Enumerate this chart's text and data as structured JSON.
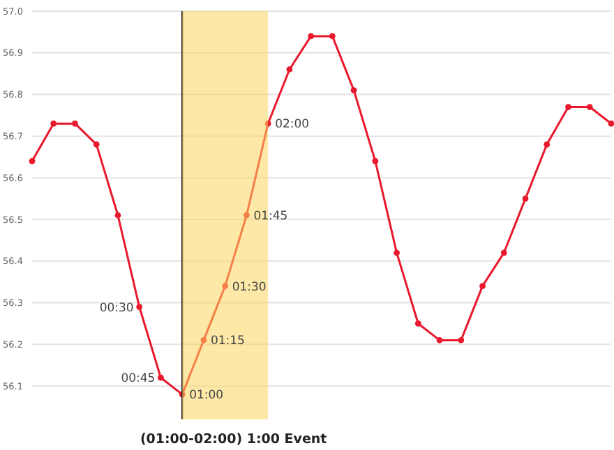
{
  "chart_data": {
    "type": "line",
    "categories": [
      null,
      null,
      null,
      null,
      null,
      null,
      null,
      null,
      null,
      null,
      null,
      null,
      null,
      null,
      null,
      null,
      null,
      null,
      null,
      null,
      null,
      null,
      null,
      null,
      null,
      null,
      null,
      null
    ],
    "series": [
      {
        "color": "#e8192c",
        "values": [
          56.64,
          56.73,
          56.73,
          56.68,
          56.51,
          56.29,
          56.12,
          56.08,
          56.21,
          56.34,
          56.51,
          56.73,
          56.86,
          56.94,
          56.94,
          56.81,
          56.64,
          56.42,
          56.25,
          56.21,
          56.21,
          56.34,
          56.42,
          56.55,
          56.68,
          56.77,
          56.77,
          56.73
        ]
      }
    ],
    "ylim": [
      56.02,
      57.0
    ],
    "yticks": [
      {
        "value": 56.1,
        "label": "56.1"
      },
      {
        "value": 56.2,
        "label": "56.2"
      },
      {
        "value": 56.3,
        "label": "56.3"
      },
      {
        "value": 56.4,
        "label": "56.4"
      },
      {
        "value": 56.5,
        "label": "56.5"
      },
      {
        "value": 56.6,
        "label": "56.6"
      },
      {
        "value": 56.7,
        "label": "56.7"
      },
      {
        "value": 56.8,
        "label": "56.8"
      },
      {
        "value": 56.9,
        "label": "56.9"
      },
      {
        "value": 57.0,
        "label": "57.0"
      }
    ],
    "grid": "y",
    "marker": "circle",
    "line_style": "solid",
    "annotations": [
      "00:30",
      "00:45",
      "01:00",
      "01:15",
      "01:30",
      "01:45",
      "02:00",
      "(01:00-02:00) 1:00 Event"
    ]
  }
}
